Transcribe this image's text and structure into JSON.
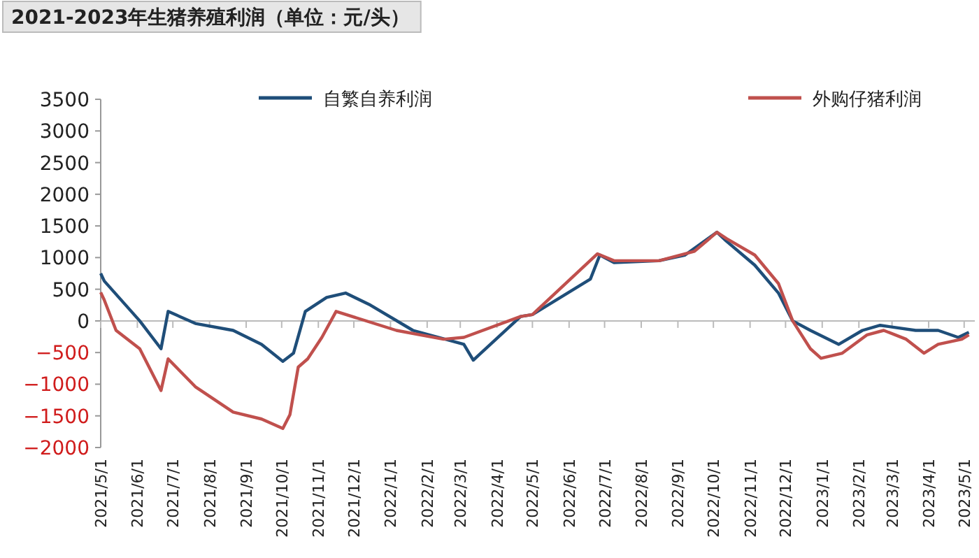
{
  "chart_data": {
    "type": "line",
    "title": "2021-2023年生猪养殖利润（单位：元/头）",
    "series": [
      {
        "name": "自繁自养利润",
        "color": "#1f4e79",
        "x": [
          "2021-05-01",
          "2021-05-04",
          "2021-06-03",
          "2021-06-21",
          "2021-06-27",
          "2021-07-20",
          "2021-08-21",
          "2021-09-14",
          "2021-10-02",
          "2021-10-11",
          "2021-10-21",
          "2021-11-08",
          "2021-11-24",
          "2021-12-15",
          "2022-01-20",
          "2022-03-04",
          "2022-03-12",
          "2022-04-21",
          "2022-05-01",
          "2022-06-19",
          "2022-06-27",
          "2022-07-09",
          "2022-08-16",
          "2022-09-07",
          "2022-10-04",
          "2022-10-12",
          "2022-11-05",
          "2022-11-25",
          "2022-12-07",
          "2022-12-22",
          "2023-01-15",
          "2023-02-04",
          "2023-02-19",
          "2023-03-21",
          "2023-04-09",
          "2023-04-26",
          "2023-05-05"
        ],
        "values": [
          750,
          630,
          0,
          -440,
          150,
          -40,
          -150,
          -370,
          -640,
          -510,
          150,
          370,
          440,
          250,
          -150,
          -370,
          -620,
          70,
          100,
          660,
          1040,
          920,
          950,
          1040,
          1400,
          1260,
          880,
          440,
          0,
          -150,
          -370,
          -150,
          -70,
          -150,
          -150,
          -260,
          -180
        ]
      },
      {
        "name": "外购仔猪利润",
        "color": "#c0504d",
        "x": [
          "2021-05-01",
          "2021-05-04",
          "2021-05-14",
          "2021-06-03",
          "2021-06-21",
          "2021-06-27",
          "2021-07-20",
          "2021-08-21",
          "2021-09-14",
          "2021-10-02",
          "2021-10-08",
          "2021-10-15",
          "2021-10-23",
          "2021-11-04",
          "2021-11-16",
          "2022-01-06",
          "2022-02-15",
          "2022-03-04",
          "2022-04-21",
          "2022-05-01",
          "2022-06-25",
          "2022-07-09",
          "2022-08-16",
          "2022-09-15",
          "2022-10-04",
          "2022-10-12",
          "2022-11-05",
          "2022-11-25",
          "2022-12-07",
          "2022-12-22",
          "2022-12-31",
          "2023-01-18",
          "2023-02-08",
          "2023-02-22",
          "2023-03-13",
          "2023-03-28",
          "2023-04-09",
          "2023-04-29",
          "2023-05-05"
        ],
        "values": [
          450,
          330,
          -150,
          -440,
          -1100,
          -600,
          -1040,
          -1440,
          -1550,
          -1700,
          -1480,
          -730,
          -600,
          -260,
          150,
          -150,
          -290,
          -260,
          70,
          100,
          1060,
          950,
          950,
          1100,
          1400,
          1300,
          1040,
          590,
          0,
          -440,
          -590,
          -510,
          -220,
          -150,
          -290,
          -510,
          -370,
          -290,
          -220
        ]
      }
    ],
    "xlim": [
      "2021-05-01",
      "2023-05-10"
    ],
    "xticks": [
      {
        "value": "2021-05-01",
        "label": "2021/5/1"
      },
      {
        "value": "2021-06-01",
        "label": "2021/6/1"
      },
      {
        "value": "2021-07-01",
        "label": "2021/7/1"
      },
      {
        "value": "2021-08-01",
        "label": "2021/8/1"
      },
      {
        "value": "2021-09-01",
        "label": "2021/9/1"
      },
      {
        "value": "2021-10-01",
        "label": "2021/10/1"
      },
      {
        "value": "2021-11-01",
        "label": "2021/11/1"
      },
      {
        "value": "2021-12-01",
        "label": "2021/12/1"
      },
      {
        "value": "2022-01-01",
        "label": "2022/1/1"
      },
      {
        "value": "2022-02-01",
        "label": "2022/2/1"
      },
      {
        "value": "2022-03-01",
        "label": "2022/3/1"
      },
      {
        "value": "2022-04-01",
        "label": "2022/4/1"
      },
      {
        "value": "2022-05-01",
        "label": "2022/5/1"
      },
      {
        "value": "2022-06-01",
        "label": "2022/6/1"
      },
      {
        "value": "2022-07-01",
        "label": "2022/7/1"
      },
      {
        "value": "2022-08-01",
        "label": "2022/8/1"
      },
      {
        "value": "2022-09-01",
        "label": "2022/9/1"
      },
      {
        "value": "2022-10-01",
        "label": "2022/10/1"
      },
      {
        "value": "2022-11-01",
        "label": "2022/11/1"
      },
      {
        "value": "2022-12-01",
        "label": "2022/12/1"
      },
      {
        "value": "2023-01-01",
        "label": "2023/1/1"
      },
      {
        "value": "2023-02-01",
        "label": "2023/2/1"
      },
      {
        "value": "2023-03-01",
        "label": "2023/3/1"
      },
      {
        "value": "2023-04-01",
        "label": "2023/4/1"
      },
      {
        "value": "2023-05-01",
        "label": "2023/5/1"
      }
    ],
    "ylim": [
      -2000,
      3500
    ],
    "yticks": [
      {
        "value": -2000,
        "label": "−2000"
      },
      {
        "value": -1500,
        "label": "−1500"
      },
      {
        "value": -1000,
        "label": "−1000"
      },
      {
        "value": -500,
        "label": "−500"
      },
      0,
      500,
      1000,
      1500,
      2000,
      2500,
      3000,
      3500
    ],
    "legend": "top"
  }
}
